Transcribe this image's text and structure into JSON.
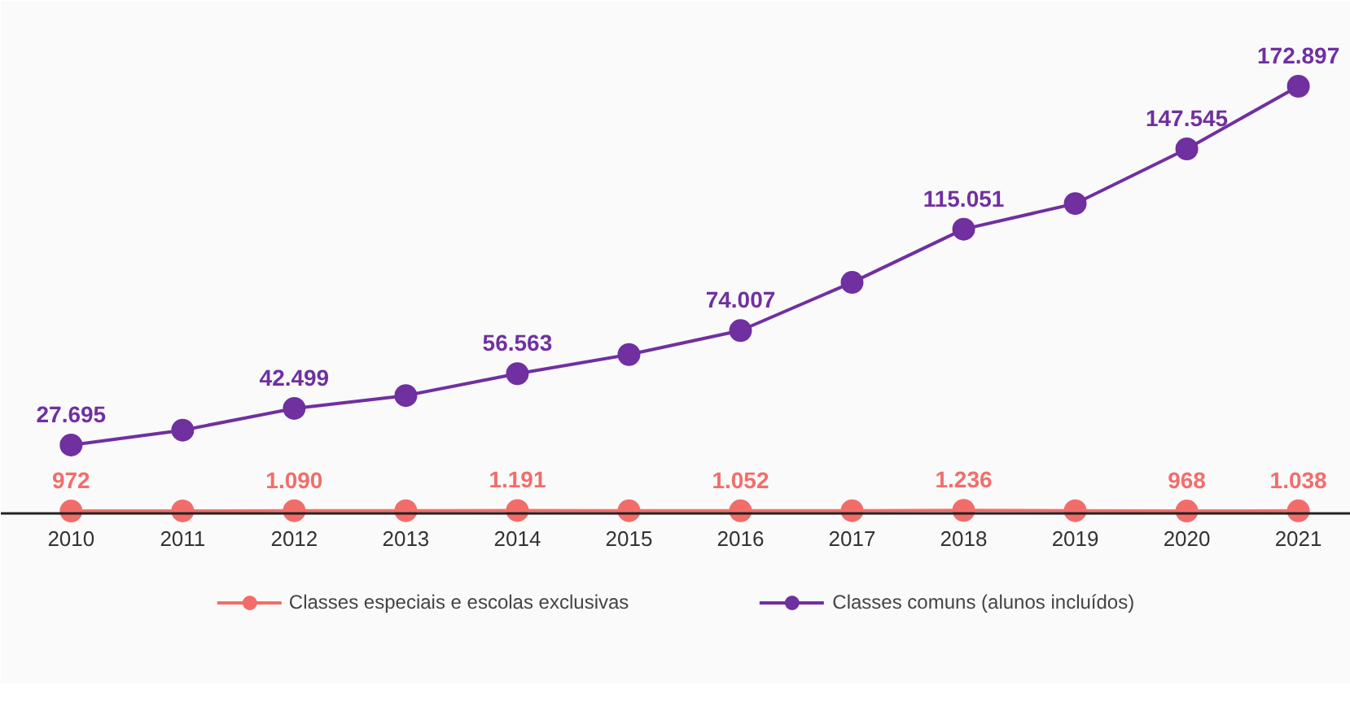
{
  "chart_data": {
    "type": "line",
    "categories": [
      "2010",
      "2011",
      "2012",
      "2013",
      "2014",
      "2015",
      "2016",
      "2017",
      "2018",
      "2019",
      "2020",
      "2021"
    ],
    "series": [
      {
        "name": "Classes especiais e escolas exclusivas",
        "color": "#f26d6a",
        "values": [
          972,
          1000,
          1090,
          1100,
          1191,
          1100,
          1052,
          1100,
          1236,
          1100,
          968,
          1038
        ],
        "value_labels": [
          "972",
          null,
          "1.090",
          null,
          "1.191",
          null,
          "1.052",
          null,
          "1.236",
          null,
          "968",
          "1.038"
        ]
      },
      {
        "name": "Classes comuns (alunos incluídos)",
        "color": "#7030a0",
        "values": [
          27695,
          33700,
          42499,
          47700,
          56563,
          64300,
          74007,
          93500,
          115051,
          125400,
          147545,
          172897
        ],
        "value_labels": [
          "27.695",
          null,
          "42.499",
          null,
          "56.563",
          null,
          "74.007",
          null,
          "115.051",
          null,
          "147.545",
          "172.897"
        ]
      }
    ],
    "marker": "circle",
    "legend": "bottom",
    "tick_labels": "x",
    "grid": false
  }
}
